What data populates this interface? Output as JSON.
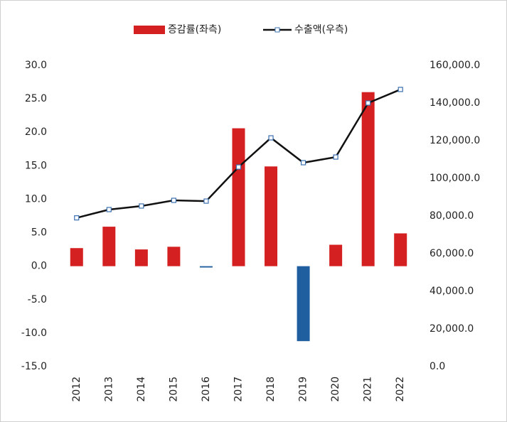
{
  "chart_data": {
    "type": "bar_line",
    "categories": [
      "2012",
      "2013",
      "2014",
      "2015",
      "2016",
      "2017",
      "2018",
      "2019",
      "2020",
      "2021",
      "2022"
    ],
    "series": [
      {
        "name": "증감률(좌측)",
        "type": "bar",
        "color": "#d42020",
        "negative_color": "#1f5fa0",
        "values": [
          2.7,
          5.9,
          2.5,
          2.9,
          -0.2,
          20.6,
          14.9,
          -11.2,
          3.2,
          26.0,
          4.9
        ]
      },
      {
        "name": "수출액(우측)",
        "type": "line",
        "axis": "y2",
        "color": "#111111",
        "marker_color": "#3a6fb0",
        "values": [
          79000,
          83400,
          85300,
          88300,
          87900,
          106000,
          121500,
          108300,
          111300,
          140000,
          147200
        ]
      }
    ],
    "ylim": [
      -15,
      30
    ],
    "yticks": [
      {
        "value": -15,
        "label": "-15.0"
      },
      {
        "value": -10,
        "label": "-10.0"
      },
      {
        "value": -5,
        "label": "-5.0"
      },
      {
        "value": 0,
        "label": "0.0"
      },
      {
        "value": 5,
        "label": "5.0"
      },
      {
        "value": 10,
        "label": "10.0"
      },
      {
        "value": 15,
        "label": "15.0"
      },
      {
        "value": 20,
        "label": "20.0"
      },
      {
        "value": 25,
        "label": "25.0"
      },
      {
        "value": 30,
        "label": "30.0"
      }
    ],
    "y2lim": [
      0,
      160000
    ],
    "y2ticks": [
      {
        "value": 0,
        "label": "0.0"
      },
      {
        "value": 20000,
        "label": "20,000.0"
      },
      {
        "value": 40000,
        "label": "40,000.0"
      },
      {
        "value": 60000,
        "label": "60,000.0"
      },
      {
        "value": 80000,
        "label": "80,000.0"
      },
      {
        "value": 100000,
        "label": "100,000.0"
      },
      {
        "value": 120000,
        "label": "120,000.0"
      },
      {
        "value": 140000,
        "label": "140,000.0"
      },
      {
        "value": 160000,
        "label": "160,000.0"
      }
    ],
    "legend": "top"
  }
}
